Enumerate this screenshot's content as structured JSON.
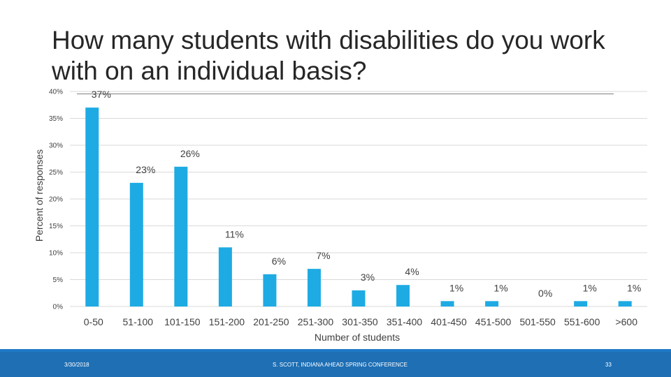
{
  "slide": {
    "title": "How many students with disabilities do you work with on an individual basis?",
    "footer_date": "3/30/2018",
    "footer_center": "S. SCOTT, INDIANA AHEAD SPRING CONFERENCE",
    "footer_page": "33"
  },
  "colors": {
    "bar": "#1eabe3",
    "grid": "#d9d9d9",
    "text": "#404040",
    "footer": "#1e6fb4"
  },
  "chart_data": {
    "type": "bar",
    "categories": [
      "0-50",
      "51-100",
      "101-150",
      "151-200",
      "201-250",
      "251-300",
      "301-350",
      "351-400",
      "401-450",
      "451-500",
      "501-550",
      "551-600",
      ">600"
    ],
    "values": [
      37,
      23,
      26,
      11,
      6,
      7,
      3,
      4,
      1,
      1,
      0,
      1,
      1
    ],
    "data_labels": [
      "37%",
      "23%",
      "26%",
      "11%",
      "6%",
      "7%",
      "3%",
      "4%",
      "1%",
      "1%",
      "0%",
      "1%",
      "1%"
    ],
    "title": "How many students with disabilities do you work with on an individual basis?",
    "xlabel": "Number of students",
    "ylabel": "Percent of responses",
    "ylim": [
      0,
      40
    ],
    "yticks": [
      "0%",
      "5%",
      "10%",
      "15%",
      "20%",
      "25%",
      "30%",
      "35%",
      "40%"
    ],
    "grid": true,
    "legend": "none"
  }
}
